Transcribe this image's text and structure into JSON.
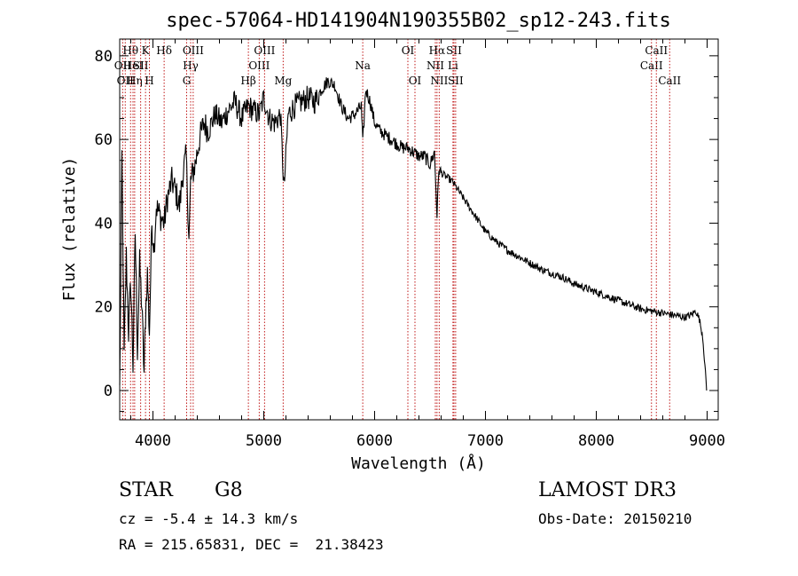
{
  "chart_data": {
    "type": "line",
    "title": "spec-57064-HD141904N190355B02_sp12-243.fits",
    "xlabel": "Wavelength (Å)",
    "ylabel": "Flux (relative)",
    "xlim": [
      3700,
      9100
    ],
    "ylim": [
      -7,
      84
    ],
    "xticks": [
      4000,
      5000,
      6000,
      7000,
      8000,
      9000
    ],
    "yticks": [
      0,
      20,
      40,
      60,
      80
    ],
    "series": [
      {
        "name": "spectrum",
        "x": [
          3700,
          3720,
          3740,
          3760,
          3780,
          3800,
          3820,
          3840,
          3860,
          3880,
          3900,
          3920,
          3933,
          3950,
          3968,
          3990,
          4010,
          4030,
          4060,
          4101,
          4130,
          4170,
          4200,
          4240,
          4270,
          4300,
          4325,
          4340,
          4380,
          4420,
          4460,
          4500,
          4560,
          4620,
          4680,
          4740,
          4800,
          4861,
          4900,
          4960,
          5000,
          5050,
          5100,
          5150,
          5175,
          5183,
          5220,
          5280,
          5340,
          5400,
          5460,
          5520,
          5580,
          5640,
          5700,
          5760,
          5820,
          5880,
          5893,
          5920,
          5960,
          6000,
          6050,
          6100,
          6150,
          6200,
          6250,
          6300,
          6350,
          6400,
          6450,
          6500,
          6540,
          6563,
          6580,
          6600,
          6650,
          6700,
          6750,
          6800,
          6850,
          6900,
          6950,
          7000,
          7100,
          7200,
          7300,
          7400,
          7500,
          7600,
          7700,
          7800,
          7900,
          8000,
          8100,
          8200,
          8300,
          8400,
          8500,
          8600,
          8700,
          8800,
          8850,
          8900,
          8930,
          8960,
          8980,
          8995
        ],
        "y": [
          0,
          56,
          8,
          32,
          14,
          26,
          6,
          38,
          10,
          30,
          20,
          4,
          18,
          28,
          14,
          40,
          34,
          44,
          42,
          40,
          46,
          50,
          48,
          44,
          52,
          56,
          36,
          50,
          54,
          60,
          64,
          62,
          66,
          64,
          67,
          69,
          65,
          68,
          67,
          66,
          70,
          65,
          64,
          66,
          52,
          48,
          66,
          68,
          69,
          70,
          69,
          72,
          74,
          73,
          68,
          65,
          66,
          68,
          59,
          72,
          69,
          64,
          62,
          61,
          60,
          59,
          58,
          58,
          57,
          56,
          56,
          54,
          57,
          42,
          53,
          52,
          51,
          50,
          48,
          46,
          44,
          42,
          40,
          38,
          35.5,
          33.5,
          32,
          30.5,
          29,
          28,
          27,
          25.5,
          24.5,
          23.5,
          22.5,
          21.5,
          20.5,
          19.5,
          19,
          18.5,
          18,
          17.5,
          18,
          19,
          17,
          13,
          6,
          0
        ]
      }
    ],
    "lines": [
      {
        "wave": 3727,
        "label": "OII",
        "row": 2
      },
      {
        "wave": 3750,
        "label": "OII",
        "row": 3
      },
      {
        "wave": 3798,
        "label": "Hθ",
        "row": 1
      },
      {
        "wave": 3820,
        "label": "HeI",
        "row": 2
      },
      {
        "wave": 3835,
        "label": "Hη",
        "row": 3
      },
      {
        "wave": 3889,
        "label": "SII",
        "row": 2
      },
      {
        "wave": 3933,
        "label": "K",
        "row": 1
      },
      {
        "wave": 3968,
        "label": "H",
        "row": 3
      },
      {
        "wave": 4101,
        "label": "Hδ",
        "row": 1
      },
      {
        "wave": 4304,
        "label": "G",
        "row": 3
      },
      {
        "wave": 4340,
        "label": "Hγ",
        "row": 2
      },
      {
        "wave": 4363,
        "label": "OIII",
        "row": 1
      },
      {
        "wave": 4861,
        "label": "Hβ",
        "row": 3
      },
      {
        "wave": 4959,
        "label": "OIII",
        "row": 2
      },
      {
        "wave": 5007,
        "label": "OIII",
        "row": 1
      },
      {
        "wave": 5175,
        "label": "Mg",
        "row": 3
      },
      {
        "wave": 5893,
        "label": "Na",
        "row": 2
      },
      {
        "wave": 6300,
        "label": "OI",
        "row": 1
      },
      {
        "wave": 6364,
        "label": "OI",
        "row": 3
      },
      {
        "wave": 6548,
        "label": "NII",
        "row": 2
      },
      {
        "wave": 6563,
        "label": "Hα",
        "row": 1
      },
      {
        "wave": 6583,
        "label": "NII",
        "row": 3
      },
      {
        "wave": 6707,
        "label": "Li",
        "row": 2
      },
      {
        "wave": 6716,
        "label": "SII",
        "row": 1
      },
      {
        "wave": 6731,
        "label": "SII",
        "row": 3
      },
      {
        "wave": 8498,
        "label": "CaII",
        "row": 2
      },
      {
        "wave": 8542,
        "label": "CaII",
        "row": 1
      },
      {
        "wave": 8662,
        "label": "CaII",
        "row": 3
      }
    ]
  },
  "info": {
    "object_class": "STAR",
    "subclass": "G8",
    "survey": "LAMOST DR3",
    "redshift_text": "cz = -5.4 ± 14.3 km/s",
    "obs_date_text": "Obs-Date: 20150210",
    "coords_text": "RA = 215.65831, DEC =  21.38423"
  }
}
